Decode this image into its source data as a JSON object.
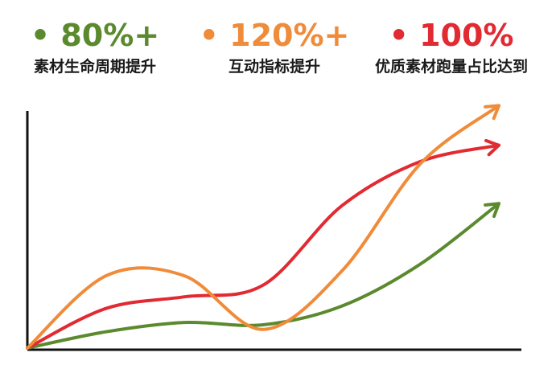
{
  "chart_data": {
    "type": "line",
    "title": "",
    "xlabel": "",
    "ylabel": "",
    "grid": false,
    "legend_position": "top",
    "series": [
      {
        "name": "素材生命周期提升",
        "value_label": "80%+",
        "bullet": "•",
        "color": "#5b8a2e",
        "trend": [
          0,
          0.07,
          0.11,
          0.1,
          0.18,
          0.36,
          0.62
        ]
      },
      {
        "name": "互动指标提升",
        "value_label": "120%+",
        "bullet": "•",
        "color": "#f08b3a",
        "trend": [
          0,
          0.31,
          0.31,
          0.08,
          0.33,
          0.79,
          1.04
        ]
      },
      {
        "name": "优质素材跑量占比达到",
        "value_label": "100%",
        "bullet": "•",
        "color": "#e12a32",
        "trend": [
          0,
          0.17,
          0.22,
          0.27,
          0.61,
          0.8,
          0.87
        ]
      }
    ]
  }
}
